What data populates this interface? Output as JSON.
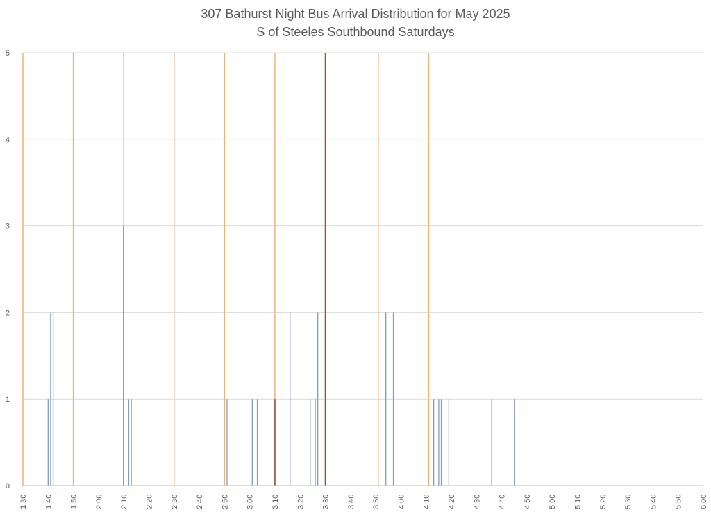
{
  "chart_data": {
    "type": "bar",
    "title": "307 Bathurst Night Bus Arrival Distribution for May 2025",
    "subtitle": "S of Steeles Southbound Saturdays",
    "xlabel": "",
    "ylabel": "",
    "ylim": [
      0,
      5
    ],
    "xlim": [
      "1:30",
      "6:00"
    ],
    "grid": true,
    "legend": "none",
    "x_ticks": [
      "1:30",
      "1:40",
      "1:50",
      "2:00",
      "2:10",
      "2:20",
      "2:30",
      "2:40",
      "2:50",
      "3:00",
      "3:10",
      "3:20",
      "3:30",
      "3:40",
      "3:50",
      "4:00",
      "4:10",
      "4:20",
      "4:30",
      "4:40",
      "4:50",
      "5:00",
      "5:10",
      "5:20",
      "5:30",
      "5:40",
      "5:50",
      "6:00"
    ],
    "y_ticks": [
      "0",
      "1",
      "2",
      "3",
      "4",
      "5"
    ],
    "arrivals": {
      "color": "#7f9cc4",
      "points": [
        {
          "x": "1:40",
          "y": 1
        },
        {
          "x": "1:41",
          "y": 2
        },
        {
          "x": "1:42",
          "y": 2
        },
        {
          "x": "2:12",
          "y": 1
        },
        {
          "x": "2:13",
          "y": 1
        },
        {
          "x": "2:51",
          "y": 1
        },
        {
          "x": "3:01",
          "y": 1
        },
        {
          "x": "3:03",
          "y": 1
        },
        {
          "x": "3:16",
          "y": 2
        },
        {
          "x": "3:24",
          "y": 1
        },
        {
          "x": "3:26",
          "y": 1
        },
        {
          "x": "3:27",
          "y": 2
        },
        {
          "x": "3:54",
          "y": 2
        },
        {
          "x": "3:57",
          "y": 2
        },
        {
          "x": "4:13",
          "y": 1
        },
        {
          "x": "4:15",
          "y": 1
        },
        {
          "x": "4:16",
          "y": 1
        },
        {
          "x": "4:19",
          "y": 1
        },
        {
          "x": "4:36",
          "y": 1
        },
        {
          "x": "4:45",
          "y": 1
        }
      ]
    },
    "dark_bars": [
      {
        "x": "2:10",
        "y": 3,
        "color": "#8a5a44"
      },
      {
        "x": "3:10",
        "y": 1,
        "color": "#8a5a44"
      },
      {
        "x": "3:30",
        "y": 5,
        "color": "#a0522d"
      }
    ],
    "schedule_lines": {
      "color": "#f0b27a",
      "x": [
        "1:30",
        "1:50",
        "2:10",
        "2:30",
        "2:50",
        "3:10",
        "3:30",
        "3:51",
        "4:11"
      ]
    },
    "colors": {
      "grid": "#d9d9d9",
      "axis": "#bfbfbf",
      "text": "#595959"
    }
  }
}
